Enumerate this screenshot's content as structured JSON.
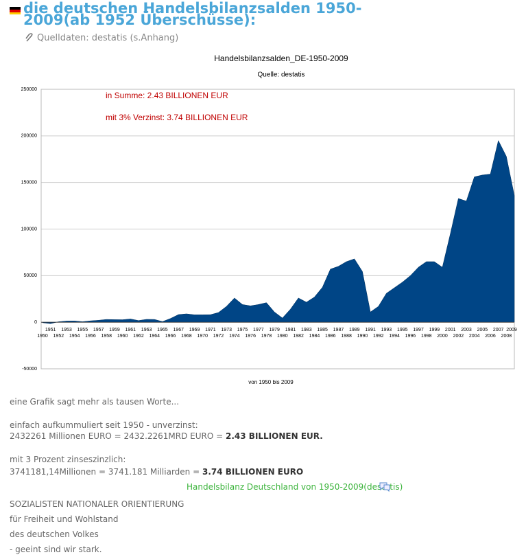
{
  "header": {
    "title": "die deutschen Handelsbilanzsalden 1950-2009(ab 1952 Überschüsse):",
    "source": "Quelldaten: destatis (s.Anhang)"
  },
  "chart_data": {
    "type": "area",
    "title": "Handelsbilanzsalden_DE-1950-2009",
    "subtitle": "Quelle: destatis",
    "x_label": "von 1950 bis 2009",
    "annotations": [
      "in Summe: 2.43 BILLIONEN EUR",
      "mit 3% Verzinst: 3.74 BILLIONEN EUR"
    ],
    "categories": [
      "1950",
      "1951",
      "1952",
      "1953",
      "1954",
      "1955",
      "1956",
      "1957",
      "1958",
      "1959",
      "1960",
      "1961",
      "1962",
      "1963",
      "1964",
      "1965",
      "1966",
      "1967",
      "1968",
      "1969",
      "1970",
      "1971",
      "1972",
      "1973",
      "1974",
      "1975",
      "1976",
      "1977",
      "1978",
      "1979",
      "1980",
      "1981",
      "1982",
      "1983",
      "1984",
      "1985",
      "1986",
      "1987",
      "1988",
      "1989",
      "1990",
      "1991",
      "1992",
      "1993",
      "1994",
      "1995",
      "1996",
      "1997",
      "1998",
      "1999",
      "2000",
      "2001",
      "2002",
      "2003",
      "2004",
      "2005",
      "2006",
      "2007",
      "2008",
      "2009"
    ],
    "values": [
      -500,
      -1500,
      500,
      1300,
      1400,
      600,
      1500,
      2100,
      3000,
      2800,
      2700,
      3500,
      1800,
      3100,
      3000,
      700,
      4000,
      8200,
      9000,
      8000,
      8000,
      8100,
      10400,
      17000,
      26000,
      19000,
      17600,
      19000,
      21000,
      11000,
      4500,
      14000,
      26000,
      21500,
      27000,
      37500,
      57000,
      60000,
      65000,
      68000,
      54500,
      11000,
      17000,
      31000,
      37000,
      43000,
      50000,
      59000,
      65000,
      65000,
      59000,
      95000,
      132800,
      130000,
      156000,
      158000,
      159000,
      195000,
      178000,
      136000
    ],
    "color": "#004586",
    "ylim": [
      -50000,
      250000
    ],
    "yticks": [
      -50000,
      0,
      50000,
      100000,
      150000,
      200000,
      250000
    ],
    "grid": true
  },
  "body": {
    "intro": "eine Grafik sagt mehr als tausen Worte...",
    "sum": {
      "label": "einfach aufkummuliert seit 1950 - unverzinst:",
      "calc": "2432261 Millionen EURO = 2432.2261MRD EURO =",
      "result": "2.43 BILLIONEN EUR."
    },
    "interest": {
      "label": "mit 3 Prozent zinseszinzlich:",
      "calc": "3741181,14Millionen = 3741.181 Milliarden =",
      "result": "3.74 BILLIONEN EURO"
    },
    "link": "Handelsbilanz Deutschland von 1950-2009(destatis)",
    "motto": [
      "SOZIALISTEN NATIONALER ORIENTIERUNG",
      "für Freiheit und Wohlstand",
      "des deutschen Volkes",
      "- geeint sind wir stark."
    ]
  }
}
